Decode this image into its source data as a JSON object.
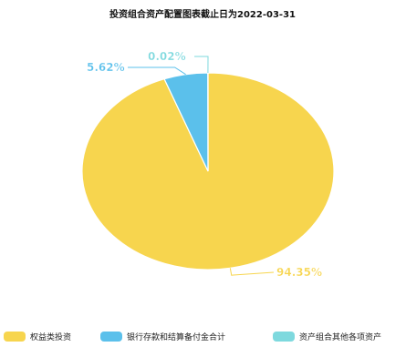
{
  "chart_data": {
    "type": "pie",
    "title": "投资组合资产配置图表截止日为2022-03-31",
    "slices": [
      {
        "label": "权益类投资",
        "value": 94.35,
        "display": "94.35%",
        "color": "#F7D54E"
      },
      {
        "label": "银行存款和结算备付金合计",
        "value": 5.62,
        "display": "5.62%",
        "color": "#5BC0EB"
      },
      {
        "label": "资产组合其他各项资产",
        "value": 0.02,
        "display": "0.02%",
        "color": "#7ED9DE"
      }
    ],
    "legend_position": "bottom"
  }
}
